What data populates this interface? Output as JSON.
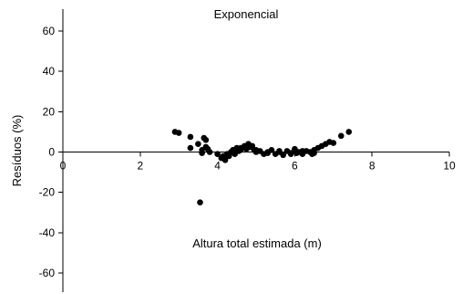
{
  "chart_data": {
    "type": "scatter",
    "title": "Exponencial",
    "xlabel": "Altura total estimada (m)",
    "ylabel": "Resíduos (%)",
    "xlim": [
      0,
      10
    ],
    "ylim": [
      -60,
      60
    ],
    "x_ticks": [
      0,
      2,
      4,
      6,
      8,
      10
    ],
    "y_ticks": [
      60,
      40,
      20,
      0,
      -20,
      -40,
      -60
    ],
    "grid": false,
    "legend": "none",
    "marker_color": "#000000",
    "series": [
      {
        "x": [
          2.9,
          3.0,
          3.3,
          3.3,
          3.5,
          3.55,
          3.6,
          3.6,
          3.65,
          3.7,
          3.7,
          3.75,
          3.8,
          4.0,
          4.1,
          4.15,
          4.2,
          4.25,
          4.3,
          4.35,
          4.4,
          4.45,
          4.5,
          4.55,
          4.6,
          4.65,
          4.7,
          4.75,
          4.8,
          4.85,
          4.9,
          4.95,
          5.0,
          5.1,
          5.2,
          5.3,
          5.4,
          5.5,
          5.6,
          5.7,
          5.8,
          5.9,
          6.0,
          6.05,
          6.1,
          6.2,
          6.3,
          6.4,
          6.45,
          6.5,
          6.6,
          6.7,
          6.8,
          6.9,
          7.0,
          7.2,
          7.4,
          4.2,
          4.4,
          4.6,
          4.8,
          5.0,
          5.3,
          5.6,
          5.9,
          6.2,
          6.5
        ],
        "y": [
          10,
          9.5,
          7.5,
          2,
          4,
          -25,
          1,
          -0.5,
          7,
          6,
          2.5,
          1.5,
          0,
          -1,
          -3,
          -2,
          -4,
          -1,
          -2,
          0,
          1,
          -1,
          2,
          0.5,
          1,
          2,
          3,
          1.5,
          4,
          2.5,
          3,
          1,
          0,
          0.5,
          -1,
          0,
          1,
          -1,
          0,
          -1.5,
          0.5,
          -0.5,
          1.5,
          -0.5,
          0,
          -1,
          0.5,
          0,
          -1,
          1,
          2,
          3,
          4,
          5,
          4.5,
          8,
          10,
          -3,
          0,
          2,
          3.5,
          1,
          -0.5,
          0.5,
          -1,
          0.5,
          -0.5
        ]
      }
    ]
  }
}
